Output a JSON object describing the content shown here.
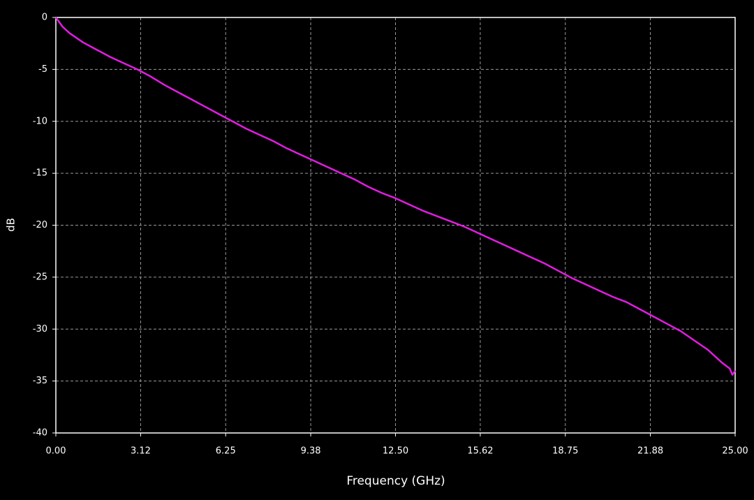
{
  "chart_data": {
    "type": "line",
    "xlabel": "Frequency (GHz)",
    "ylabel": "dB",
    "x": [
      0,
      0.25,
      0.5,
      1,
      1.5,
      2,
      2.5,
      3,
      3.5,
      4,
      4.5,
      5,
      5.5,
      6,
      6.5,
      7,
      7.5,
      8,
      8.5,
      9,
      9.5,
      10,
      10.5,
      11,
      11.5,
      12,
      12.5,
      13,
      13.5,
      14,
      14.5,
      15,
      15.5,
      16,
      16.5,
      17,
      17.5,
      18,
      18.5,
      19,
      19.5,
      20,
      20.5,
      21,
      21.5,
      22,
      22.5,
      23,
      23.5,
      24,
      24.5,
      24.8,
      24.9,
      25
    ],
    "series": [
      {
        "name": "dB",
        "color": "#e21ce2",
        "values": [
          0,
          -0.9,
          -1.5,
          -2.4,
          -3.1,
          -3.8,
          -4.4,
          -5.0,
          -5.7,
          -6.5,
          -7.2,
          -7.9,
          -8.6,
          -9.3,
          -10.0,
          -10.7,
          -11.3,
          -11.9,
          -12.6,
          -13.2,
          -13.8,
          -14.4,
          -15.0,
          -15.6,
          -16.3,
          -16.9,
          -17.4,
          -18.0,
          -18.6,
          -19.1,
          -19.6,
          -20.1,
          -20.7,
          -21.3,
          -21.9,
          -22.5,
          -23.1,
          -23.7,
          -24.4,
          -25.1,
          -25.7,
          -26.3,
          -26.9,
          -27.4,
          -28.1,
          -28.8,
          -29.5,
          -30.2,
          -31.1,
          -32.0,
          -33.2,
          -33.8,
          -34.4,
          -34.0
        ]
      }
    ],
    "xlim": [
      0,
      25
    ],
    "xticks": [
      {
        "value": 0,
        "label": "0.00"
      },
      3.12,
      6.25,
      9.38,
      {
        "value": 12.5,
        "label": "12.50"
      },
      15.62,
      18.75,
      21.88,
      {
        "value": 25,
        "label": "25.00"
      }
    ],
    "ylim": [
      -40,
      0
    ],
    "yticks": [
      0,
      -5,
      -10,
      -15,
      -20,
      -25,
      -30,
      -35,
      -40
    ],
    "grid": true
  }
}
